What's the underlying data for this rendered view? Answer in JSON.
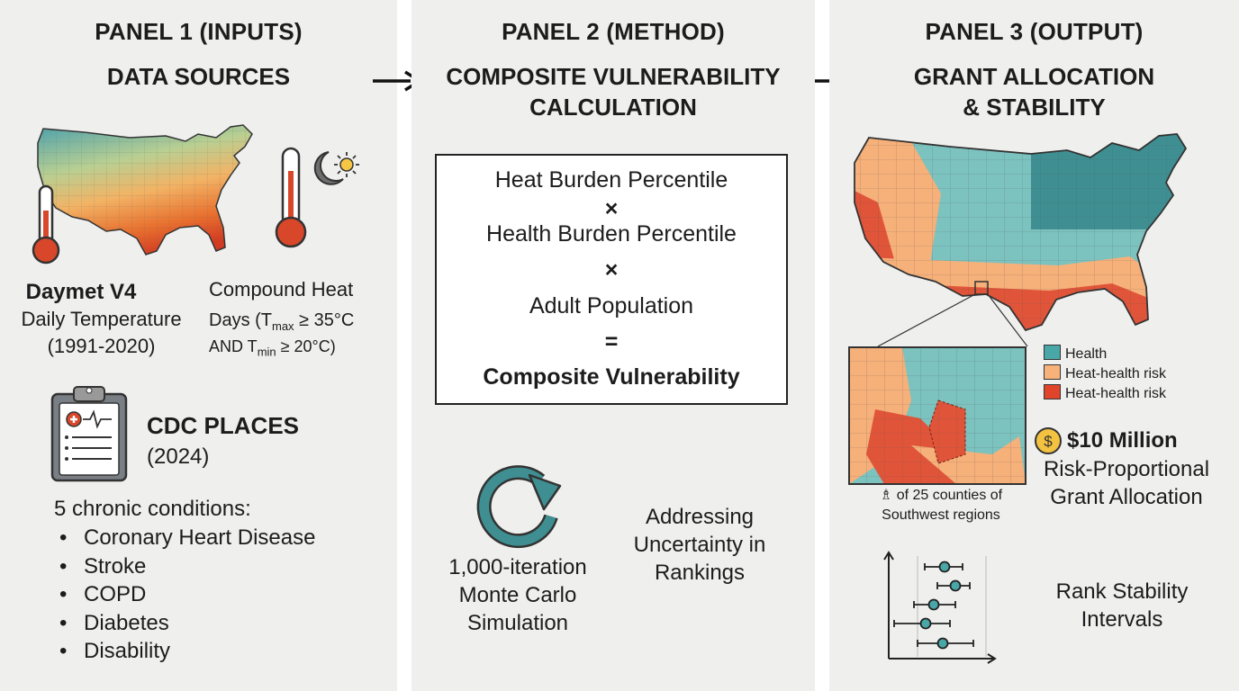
{
  "panel1": {
    "title": "PANEL 1 (INPUTS)",
    "subtitle": "DATA SOURCES",
    "daymet": {
      "name": "Daymet V4",
      "line1": "Daily Temperature",
      "line2": "(1991-2020)"
    },
    "compound": {
      "title": "Compound Heat",
      "days_prefix": "Days (T",
      "tmax_sub": "max",
      "tmax_rest": " ≥ 35°C",
      "and_prefix": "AND T",
      "tmin_sub": "min",
      "tmin_rest": " ≥ 20°C)"
    },
    "cdc": {
      "name": "CDC PLACES",
      "year": "(2024)"
    },
    "conditions_title": "5 chronic conditions:",
    "conditions": [
      "Coronary Heart Disease",
      "Stroke",
      "COPD",
      "Diabetes",
      "Disability"
    ]
  },
  "panel2": {
    "title": "PANEL 2 (METHOD)",
    "subtitle_l1": "COMPOSITE VULNERABILITY",
    "subtitle_l2": "CALCULATION",
    "formula": {
      "term1": "Heat Burden Percentile",
      "op1": "×",
      "term2": "Health Burden Percentile",
      "op2": "×",
      "term3": "Adult Population",
      "eq": "=",
      "result": "Composite Vulnerability"
    },
    "mc_l1": "1,000-iteration",
    "mc_l2": "Monte Carlo",
    "mc_l3": "Simulation",
    "unc_l1": "Addressing",
    "unc_l2": "Uncertainty in",
    "unc_l3": "Rankings"
  },
  "panel3": {
    "title": "PANEL 3 (OUTPUT)",
    "subtitle_l1": "GRANT ALLOCATION",
    "subtitle_l2": "& STABILITY",
    "legend": [
      {
        "label": "Health",
        "color": "#4aa7a8"
      },
      {
        "label": "Heat-health risk",
        "color": "#f7b27a"
      },
      {
        "label": "Heat-health risk",
        "color": "#e0452c"
      }
    ],
    "inset_l1": "of 25 counties of",
    "inset_l2": "Southwest regions",
    "grant_amount": "$10 Million",
    "grant_l1": "Risk-Proportional",
    "grant_l2": "Grant Allocation",
    "rank_l1": "Rank Stability",
    "rank_l2": "Intervals"
  },
  "colors": {
    "panel_bg": "#efefee",
    "teal": "#3f8f92",
    "orange": "#f4a261",
    "red": "#d9472b"
  }
}
